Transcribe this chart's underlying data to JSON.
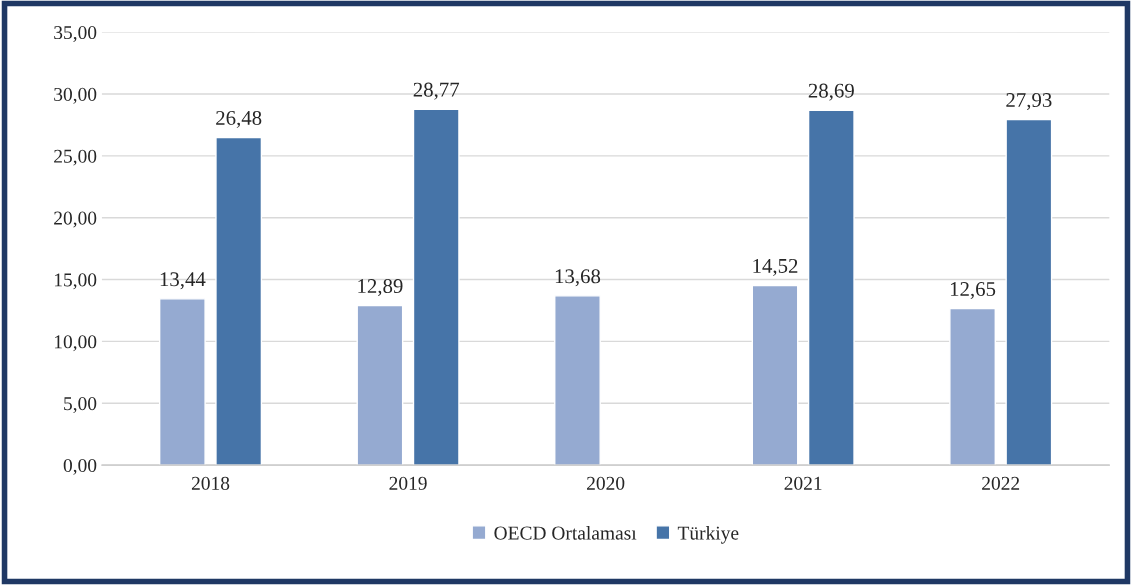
{
  "chart_data": {
    "type": "bar",
    "categories": [
      "2018",
      "2019",
      "2020",
      "2021",
      "2022"
    ],
    "series": [
      {
        "name": "OECD Ortalaması",
        "color": "#95aad1",
        "values": [
          13.44,
          12.89,
          13.68,
          14.52,
          12.65
        ],
        "value_labels": [
          "13,44",
          "12,89",
          "13,68",
          "14,52",
          "12,65"
        ]
      },
      {
        "name": "Türkiye",
        "color": "#4674a8",
        "values": [
          26.48,
          28.77,
          null,
          28.69,
          27.93
        ],
        "value_labels": [
          "26,48",
          "28,77",
          null,
          "28,69",
          "27,93"
        ]
      }
    ],
    "ylim": [
      0,
      35
    ],
    "yticks": [
      {
        "value": 0,
        "label": "0,00"
      },
      {
        "value": 5,
        "label": "5,00"
      },
      {
        "value": 10,
        "label": "10,00"
      },
      {
        "value": 15,
        "label": "15,00"
      },
      {
        "value": 20,
        "label": "20,00"
      },
      {
        "value": 25,
        "label": "25,00"
      },
      {
        "value": 30,
        "label": "30,00"
      },
      {
        "value": 35,
        "label": "35,00"
      }
    ],
    "grid": "y",
    "legend": "bottom"
  }
}
